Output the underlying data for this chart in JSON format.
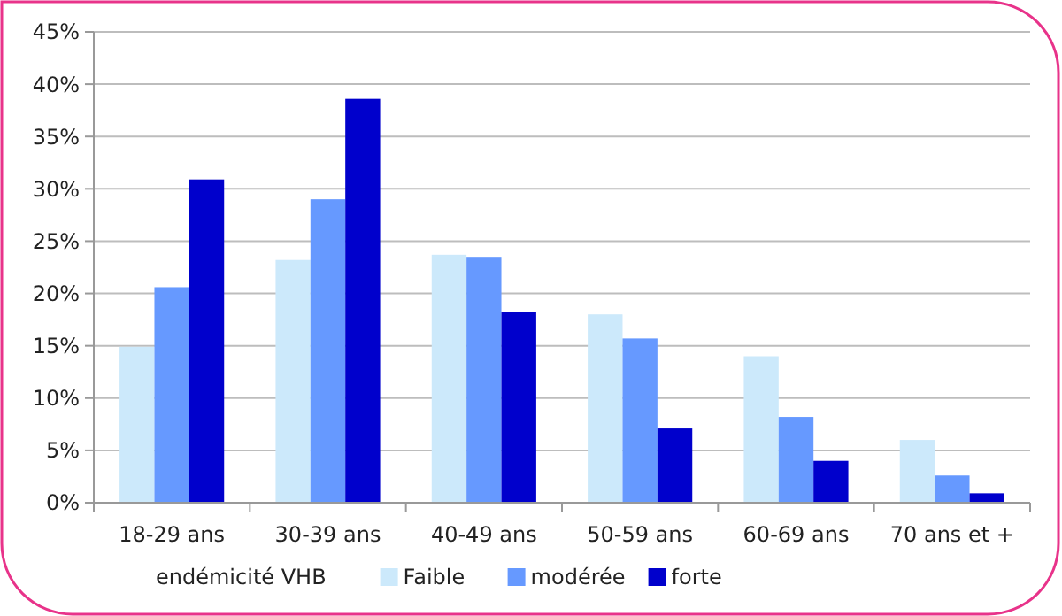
{
  "chart_data": {
    "type": "bar",
    "categories": [
      "18-29 ans",
      "30-39 ans",
      "40-49 ans",
      "50-59 ans",
      "60-69 ans",
      "70 ans et +"
    ],
    "series": [
      {
        "name": "Faible",
        "color": "#cce9fb",
        "values": [
          14.9,
          23.2,
          23.7,
          18.0,
          14.0,
          6.0
        ]
      },
      {
        "name": "modérée",
        "color": "#6699ff",
        "values": [
          20.6,
          29.0,
          23.5,
          15.7,
          8.2,
          2.6
        ]
      },
      {
        "name": "forte",
        "color": "#0000cc",
        "values": [
          30.9,
          38.6,
          18.2,
          7.1,
          4.0,
          0.9
        ]
      }
    ],
    "ylim": [
      0,
      45
    ],
    "yticks": [
      {
        "value": 0,
        "label": "0%"
      },
      {
        "value": 5,
        "label": "5%"
      },
      {
        "value": 10,
        "label": "10%"
      },
      {
        "value": 15,
        "label": "15%"
      },
      {
        "value": 20,
        "label": "20%"
      },
      {
        "value": 25,
        "label": "25%"
      },
      {
        "value": 30,
        "label": "30%"
      },
      {
        "value": 35,
        "label": "35%"
      },
      {
        "value": 40,
        "label": "40%"
      },
      {
        "value": 45,
        "label": "45%"
      }
    ],
    "grid": "y",
    "legend": "bottom",
    "legend_title": "endémicité VHB"
  }
}
